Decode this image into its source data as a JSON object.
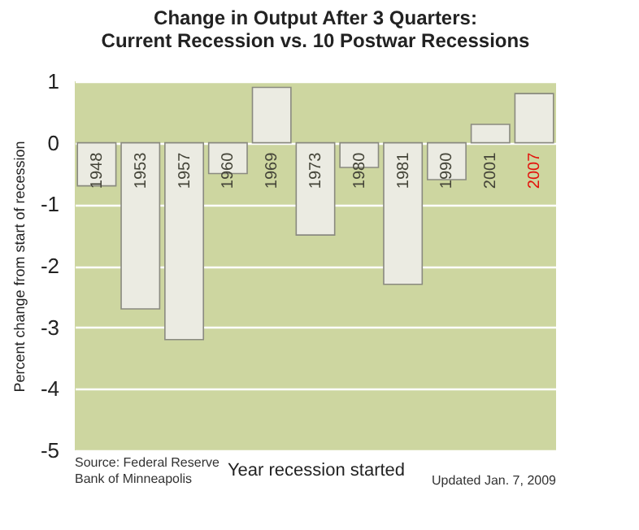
{
  "chart_data": {
    "type": "bar",
    "title": "Change in Output After 3 Quarters:",
    "subtitle": "Current Recession vs. 10 Postwar Recessions",
    "xlabel": "Year recession started",
    "ylabel": "Percent change from start of recession",
    "categories": [
      "1948",
      "1953",
      "1957",
      "1960",
      "1969",
      "1973",
      "1980",
      "1981",
      "1990",
      "2001",
      "2007"
    ],
    "values": [
      -0.7,
      -2.7,
      -3.2,
      -0.5,
      0.9,
      -1.5,
      -0.4,
      -2.3,
      -0.6,
      0.3,
      0.8
    ],
    "color": "#ebebe2",
    "ylim": [
      -5,
      1
    ],
    "yticks": [
      -5,
      -4,
      -3,
      -2,
      -1,
      0,
      1
    ],
    "grid": "y",
    "annotations": [
      "Source: Federal Reserve\nBank of Minneapolis",
      "Updated Jan. 7, 2009"
    ]
  }
}
